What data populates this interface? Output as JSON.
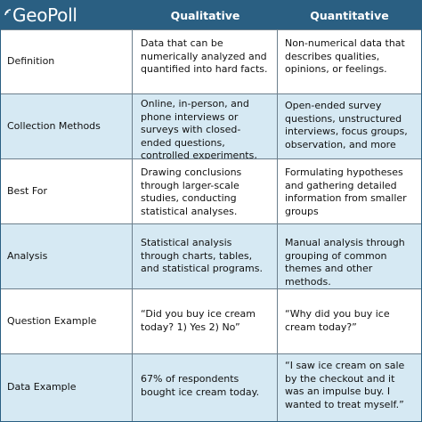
{
  "header": {
    "logo_text": "GeoPoll",
    "col1": "Qualitative",
    "col2": "Quantitative"
  },
  "rows": [
    {
      "label": "Definition",
      "qualitative": "Data that can be numerically analyzed and quantified into hard facts.",
      "quantitative": "Non-numerical data that describes qualities, opinions, or feelings."
    },
    {
      "label": "Collection Methods",
      "qualitative": "Online, in-person, and phone interviews or surveys with closed-ended questions, controlled experiments, and more",
      "quantitative": "Open-ended survey questions, unstructured interviews, focus groups, observation, and more"
    },
    {
      "label": "Best For",
      "qualitative": "Drawing conclusions through larger-scale studies, conducting statistical analyses.",
      "quantitative": "Formulating hypotheses and gathering detailed information from smaller groups"
    },
    {
      "label": "Analysis",
      "qualitative": "Statistical analysis through charts, tables, and statistical programs.",
      "quantitative": "Manual analysis through grouping of common themes and other methods."
    },
    {
      "label": "Question Example",
      "qualitative": "“Did you buy ice cream today? 1) Yes 2) No”",
      "quantitative": "“Why did you buy ice cream today?”"
    },
    {
      "label": "Data Example",
      "qualitative": "67% of respondents bought ice cream today.",
      "quantitative": "“I saw ice cream on sale by the checkout and it was an impulse buy. I wanted to treat myself.”"
    }
  ],
  "colors": {
    "header_bg": "#2a5f82",
    "shaded_row_bg": "#d6e9f3"
  },
  "icons": [
    "signal-icon"
  ]
}
